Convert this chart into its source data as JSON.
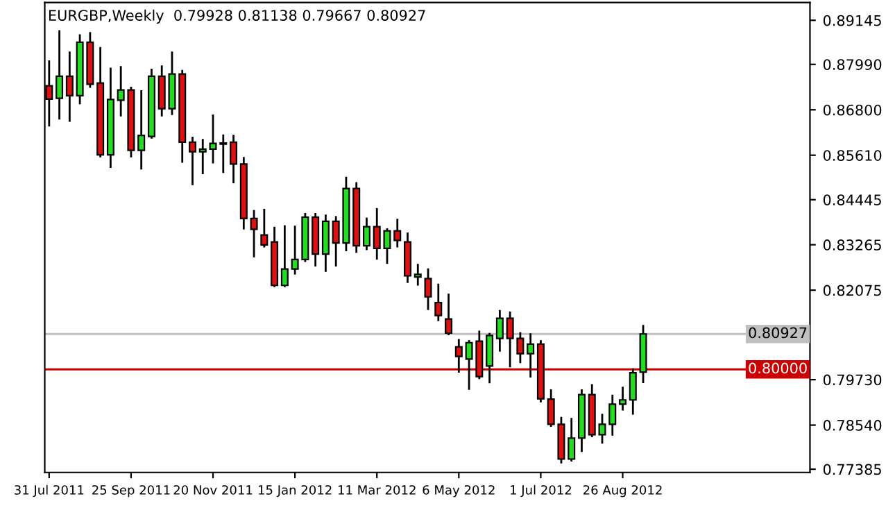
{
  "chart_data": {
    "type": "candlestick",
    "title": "EURGBP,Weekly  0.79928 0.81138 0.79667 0.80927",
    "x": [
      "2011-07-31",
      "2011-08-07",
      "2011-08-14",
      "2011-08-21",
      "2011-08-28",
      "2011-09-04",
      "2011-09-11",
      "2011-09-18",
      "2011-09-25",
      "2011-10-02",
      "2011-10-09",
      "2011-10-16",
      "2011-10-23",
      "2011-10-30",
      "2011-11-06",
      "2011-11-13",
      "2011-11-20",
      "2011-11-27",
      "2011-12-04",
      "2011-12-11",
      "2011-12-18",
      "2011-12-25",
      "2012-01-01",
      "2012-01-08",
      "2012-01-15",
      "2012-01-22",
      "2012-01-29",
      "2012-02-05",
      "2012-02-12",
      "2012-02-19",
      "2012-02-26",
      "2012-03-04",
      "2012-03-11",
      "2012-03-18",
      "2012-03-25",
      "2012-04-01",
      "2012-04-08",
      "2012-04-15",
      "2012-04-22",
      "2012-04-29",
      "2012-05-06",
      "2012-05-13",
      "2012-05-20",
      "2012-05-27",
      "2012-06-03",
      "2012-06-10",
      "2012-06-17",
      "2012-06-24",
      "2012-07-01",
      "2012-07-08",
      "2012-07-15",
      "2012-07-22",
      "2012-07-29",
      "2012-08-05",
      "2012-08-12",
      "2012-08-19",
      "2012-08-26",
      "2012-09-02",
      "2012-09-09"
    ],
    "ohlc": [
      [
        0.8743,
        0.8807,
        0.8639,
        0.8708
      ],
      [
        0.871,
        0.8886,
        0.8657,
        0.8768
      ],
      [
        0.8768,
        0.883,
        0.8651,
        0.8717
      ],
      [
        0.8717,
        0.8875,
        0.8697,
        0.8857
      ],
      [
        0.8857,
        0.8881,
        0.874,
        0.8747
      ],
      [
        0.875,
        0.8842,
        0.8558,
        0.8562
      ],
      [
        0.8562,
        0.8788,
        0.853,
        0.8707
      ],
      [
        0.8705,
        0.8792,
        0.8665,
        0.8732
      ],
      [
        0.8732,
        0.8738,
        0.8558,
        0.8574
      ],
      [
        0.8574,
        0.8729,
        0.8526,
        0.8613
      ],
      [
        0.861,
        0.8785,
        0.8607,
        0.8768
      ],
      [
        0.8768,
        0.8794,
        0.8665,
        0.8683
      ],
      [
        0.8683,
        0.883,
        0.8669,
        0.8774
      ],
      [
        0.8774,
        0.8782,
        0.8544,
        0.8595
      ],
      [
        0.8595,
        0.8607,
        0.8485,
        0.857
      ],
      [
        0.857,
        0.8601,
        0.8514,
        0.8577
      ],
      [
        0.8577,
        0.8665,
        0.8542,
        0.8592
      ],
      [
        0.8593,
        0.8613,
        0.8517,
        0.859
      ],
      [
        0.8595,
        0.8612,
        0.849,
        0.8538
      ],
      [
        0.8538,
        0.8554,
        0.8369,
        0.8395
      ],
      [
        0.8395,
        0.8415,
        0.8296,
        0.8367
      ],
      [
        0.8352,
        0.8418,
        0.8322,
        0.8326
      ],
      [
        0.8334,
        0.8371,
        0.8218,
        0.822
      ],
      [
        0.822,
        0.8375,
        0.8218,
        0.8263
      ],
      [
        0.8263,
        0.8374,
        0.8251,
        0.8288
      ],
      [
        0.8288,
        0.8407,
        0.8284,
        0.8399
      ],
      [
        0.8399,
        0.8407,
        0.8272,
        0.8302
      ],
      [
        0.8302,
        0.8403,
        0.8258,
        0.8388
      ],
      [
        0.8388,
        0.8399,
        0.8272,
        0.8331
      ],
      [
        0.8331,
        0.8502,
        0.8312,
        0.8474
      ],
      [
        0.8474,
        0.8488,
        0.8308,
        0.8324
      ],
      [
        0.8324,
        0.8395,
        0.8315,
        0.8374
      ],
      [
        0.8374,
        0.842,
        0.829,
        0.8317
      ],
      [
        0.8317,
        0.8367,
        0.8279,
        0.8363
      ],
      [
        0.8363,
        0.8392,
        0.8322,
        0.8338
      ],
      [
        0.8334,
        0.8356,
        0.8229,
        0.8245
      ],
      [
        0.8242,
        0.8274,
        0.8222,
        0.8249
      ],
      [
        0.8238,
        0.8262,
        0.8158,
        0.819
      ],
      [
        0.8175,
        0.8222,
        0.8129,
        0.8141
      ],
      [
        0.8132,
        0.8196,
        0.8092,
        0.8095
      ],
      [
        0.8059,
        0.8077,
        0.7994,
        0.8034
      ],
      [
        0.8027,
        0.8074,
        0.7949,
        0.807
      ],
      [
        0.8074,
        0.8099,
        0.7977,
        0.7981
      ],
      [
        0.8009,
        0.8093,
        0.7966,
        0.8089
      ],
      [
        0.8081,
        0.8153,
        0.8049,
        0.8134
      ],
      [
        0.8134,
        0.8149,
        0.8008,
        0.8081
      ],
      [
        0.8081,
        0.8095,
        0.8019,
        0.8041
      ],
      [
        0.8041,
        0.8092,
        0.7981,
        0.8066
      ],
      [
        0.8066,
        0.8074,
        0.7916,
        0.7923
      ],
      [
        0.7922,
        0.7945,
        0.7852,
        0.7856
      ],
      [
        0.7856,
        0.7873,
        0.7756,
        0.7765
      ],
      [
        0.7765,
        0.787,
        0.7761,
        0.782
      ],
      [
        0.782,
        0.7945,
        0.7786,
        0.7934
      ],
      [
        0.7934,
        0.7959,
        0.7825,
        0.7829
      ],
      [
        0.7829,
        0.7881,
        0.7808,
        0.7856
      ],
      [
        0.7856,
        0.7931,
        0.7829,
        0.7909
      ],
      [
        0.7909,
        0.7952,
        0.7895,
        0.792
      ],
      [
        0.792,
        0.8,
        0.7884,
        0.7991
      ],
      [
        0.79928,
        0.81138,
        0.79667,
        0.80927
      ]
    ],
    "colors": [
      "#dd1111",
      "#22dd22",
      "#dd1111",
      "#22dd22",
      "#dd1111",
      "#dd1111",
      "#22dd22",
      "#22dd22",
      "#dd1111",
      "#22dd22",
      "#22dd22",
      "#dd1111",
      "#22dd22",
      "#dd1111",
      "#dd1111",
      "#22dd22",
      "#22dd22",
      "#dd1111",
      "#dd1111",
      "#dd1111",
      "#dd1111",
      "#dd1111",
      "#dd1111",
      "#22dd22",
      "#22dd22",
      "#22dd22",
      "#dd1111",
      "#22dd22",
      "#dd1111",
      "#22dd22",
      "#dd1111",
      "#22dd22",
      "#dd1111",
      "#22dd22",
      "#dd1111",
      "#dd1111",
      "#22dd22",
      "#dd1111",
      "#dd1111",
      "#dd1111",
      "#dd1111",
      "#22dd22",
      "#dd1111",
      "#22dd22",
      "#22dd22",
      "#dd1111",
      "#dd1111",
      "#22dd22",
      "#dd1111",
      "#dd1111",
      "#dd1111",
      "#22dd22",
      "#22dd22",
      "#dd1111",
      "#22dd22",
      "#22dd22",
      "#22dd22",
      "#22dd22",
      "#22dd22"
    ],
    "xlim": [
      "2011-07-28",
      "2013-01-01"
    ],
    "xticks": [
      {
        "value": "2011-07-31",
        "label": "31 Jul 2011"
      },
      {
        "value": "2011-09-25",
        "label": "25 Sep 2011"
      },
      {
        "value": "2011-11-20",
        "label": "20 Nov 2011"
      },
      {
        "value": "2012-01-15",
        "label": "15 Jan 2012"
      },
      {
        "value": "2012-03-11",
        "label": "11 Mar 2012"
      },
      {
        "value": "2012-05-06",
        "label": "6 May 2012"
      },
      {
        "value": "2012-07-01",
        "label": "1 Jul 2012"
      },
      {
        "value": "2012-08-26",
        "label": "26 Aug 2012"
      }
    ],
    "ylim": [
      0.773,
      0.8961
    ],
    "yticks": [
      {
        "value": 0.89145,
        "label": "0.89145"
      },
      {
        "value": 0.8799,
        "label": "0.87990"
      },
      {
        "value": 0.868,
        "label": "0.86800"
      },
      {
        "value": 0.8561,
        "label": "0.85610"
      },
      {
        "value": 0.84445,
        "label": "0.84445"
      },
      {
        "value": 0.83265,
        "label": "0.83265"
      },
      {
        "value": 0.82075,
        "label": "0.82075"
      },
      {
        "value": 0.7973,
        "label": "0.79730"
      },
      {
        "value": 0.7854,
        "label": "0.78540"
      },
      {
        "value": 0.77385,
        "label": "0.77385"
      }
    ],
    "ref_lines": [
      {
        "axis": "y",
        "value": 0.80927,
        "label": "0.80927",
        "color": "#c0c0c0"
      },
      {
        "axis": "y",
        "value": 0.8,
        "label": "0.80000",
        "color": "#cc0000"
      }
    ],
    "grid": false,
    "legend": false
  }
}
